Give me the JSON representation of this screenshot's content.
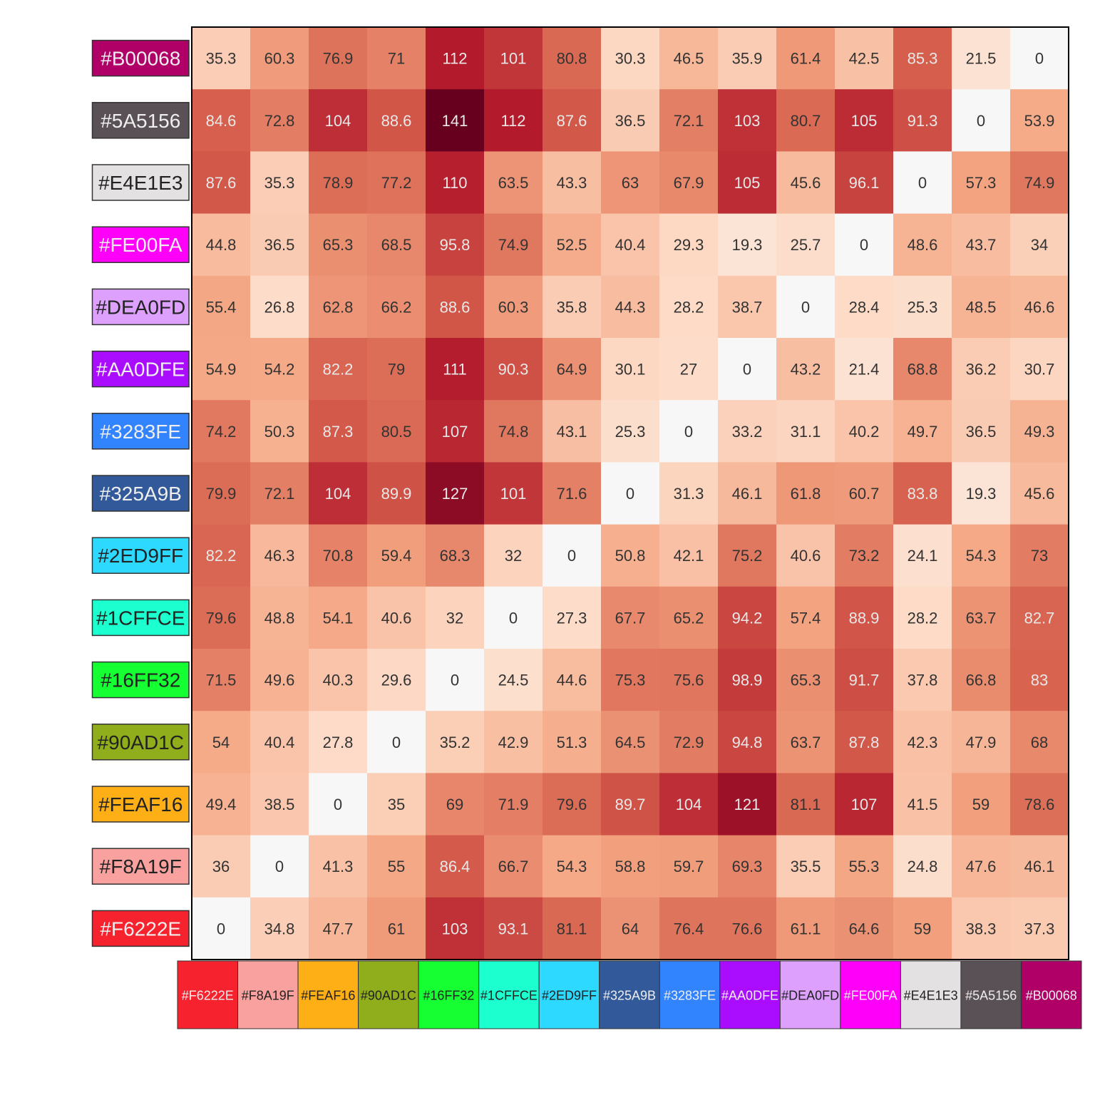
{
  "chart_data": {
    "type": "heatmap",
    "title": "",
    "xlabel": "",
    "ylabel": "",
    "color_scale": {
      "min": 0,
      "max": 141,
      "colors": [
        "#F7F7F7",
        "#FDDBC7",
        "#F4A582",
        "#D6604D",
        "#B2182B",
        "#67001F"
      ]
    },
    "row_labels": [
      "#B00068",
      "#5A5156",
      "#E4E1E3",
      "#FE00FA",
      "#DEA0FD",
      "#AA0DFE",
      "#3283FE",
      "#325A9B",
      "#2ED9FF",
      "#1CFFCE",
      "#16FF32",
      "#90AD1C",
      "#FEAF16",
      "#F8A19F",
      "#F6222E"
    ],
    "column_labels": [
      "#F6222E",
      "#F8A19F",
      "#FEAF16",
      "#90AD1C",
      "#16FF32",
      "#1CFFCE",
      "#2ED9FF",
      "#325A9B",
      "#3283FE",
      "#AA0DFE",
      "#DEA0FD",
      "#FE00FA",
      "#E4E1E3",
      "#5A5156",
      "#B00068"
    ],
    "values": [
      [
        "35.3",
        "60.3",
        "76.9",
        "71",
        "112",
        "101",
        "80.8",
        "30.3",
        "46.5",
        "35.9",
        "61.4",
        "42.5",
        "85.3",
        "21.5",
        "0"
      ],
      [
        "84.6",
        "72.8",
        "104",
        "88.6",
        "141",
        "112",
        "87.6",
        "36.5",
        "72.1",
        "103",
        "80.7",
        "105",
        "91.3",
        "0",
        "53.9"
      ],
      [
        "87.6",
        "35.3",
        "78.9",
        "77.2",
        "110",
        "63.5",
        "43.3",
        "63",
        "67.9",
        "105",
        "45.6",
        "96.1",
        "0",
        "57.3",
        "74.9"
      ],
      [
        "44.8",
        "36.5",
        "65.3",
        "68.5",
        "95.8",
        "74.9",
        "52.5",
        "40.4",
        "29.3",
        "19.3",
        "25.7",
        "0",
        "48.6",
        "43.7",
        "34"
      ],
      [
        "55.4",
        "26.8",
        "62.8",
        "66.2",
        "88.6",
        "60.3",
        "35.8",
        "44.3",
        "28.2",
        "38.7",
        "0",
        "28.4",
        "25.3",
        "48.5",
        "46.6"
      ],
      [
        "54.9",
        "54.2",
        "82.2",
        "79",
        "111",
        "90.3",
        "64.9",
        "30.1",
        "27",
        "0",
        "43.2",
        "21.4",
        "68.8",
        "36.2",
        "30.7"
      ],
      [
        "74.2",
        "50.3",
        "87.3",
        "80.5",
        "107",
        "74.8",
        "43.1",
        "25.3",
        "0",
        "33.2",
        "31.1",
        "40.2",
        "49.7",
        "36.5",
        "49.3"
      ],
      [
        "79.9",
        "72.1",
        "104",
        "89.9",
        "127",
        "101",
        "71.6",
        "0",
        "31.3",
        "46.1",
        "61.8",
        "60.7",
        "83.8",
        "19.3",
        "45.6"
      ],
      [
        "82.2",
        "46.3",
        "70.8",
        "59.4",
        "68.3",
        "32",
        "0",
        "50.8",
        "42.1",
        "75.2",
        "40.6",
        "73.2",
        "24.1",
        "54.3",
        "73"
      ],
      [
        "79.6",
        "48.8",
        "54.1",
        "40.6",
        "32",
        "0",
        "27.3",
        "67.7",
        "65.2",
        "94.2",
        "57.4",
        "88.9",
        "28.2",
        "63.7",
        "82.7"
      ],
      [
        "71.5",
        "49.6",
        "40.3",
        "29.6",
        "0",
        "24.5",
        "44.6",
        "75.3",
        "75.6",
        "98.9",
        "65.3",
        "91.7",
        "37.8",
        "66.8",
        "83"
      ],
      [
        "54",
        "40.4",
        "27.8",
        "0",
        "35.2",
        "42.9",
        "51.3",
        "64.5",
        "72.9",
        "94.8",
        "63.7",
        "87.8",
        "42.3",
        "47.9",
        "68"
      ],
      [
        "49.4",
        "38.5",
        "0",
        "35",
        "69",
        "71.9",
        "79.6",
        "89.7",
        "104",
        "121",
        "81.1",
        "107",
        "41.5",
        "59",
        "78.6"
      ],
      [
        "36",
        "0",
        "41.3",
        "55",
        "86.4",
        "66.7",
        "54.3",
        "58.8",
        "59.7",
        "69.3",
        "35.5",
        "55.3",
        "24.8",
        "47.6",
        "46.1"
      ],
      [
        "0",
        "34.8",
        "47.7",
        "61",
        "103",
        "93.1",
        "81.1",
        "64",
        "76.4",
        "76.6",
        "61.1",
        "64.6",
        "59",
        "38.3",
        "37.3"
      ]
    ]
  }
}
